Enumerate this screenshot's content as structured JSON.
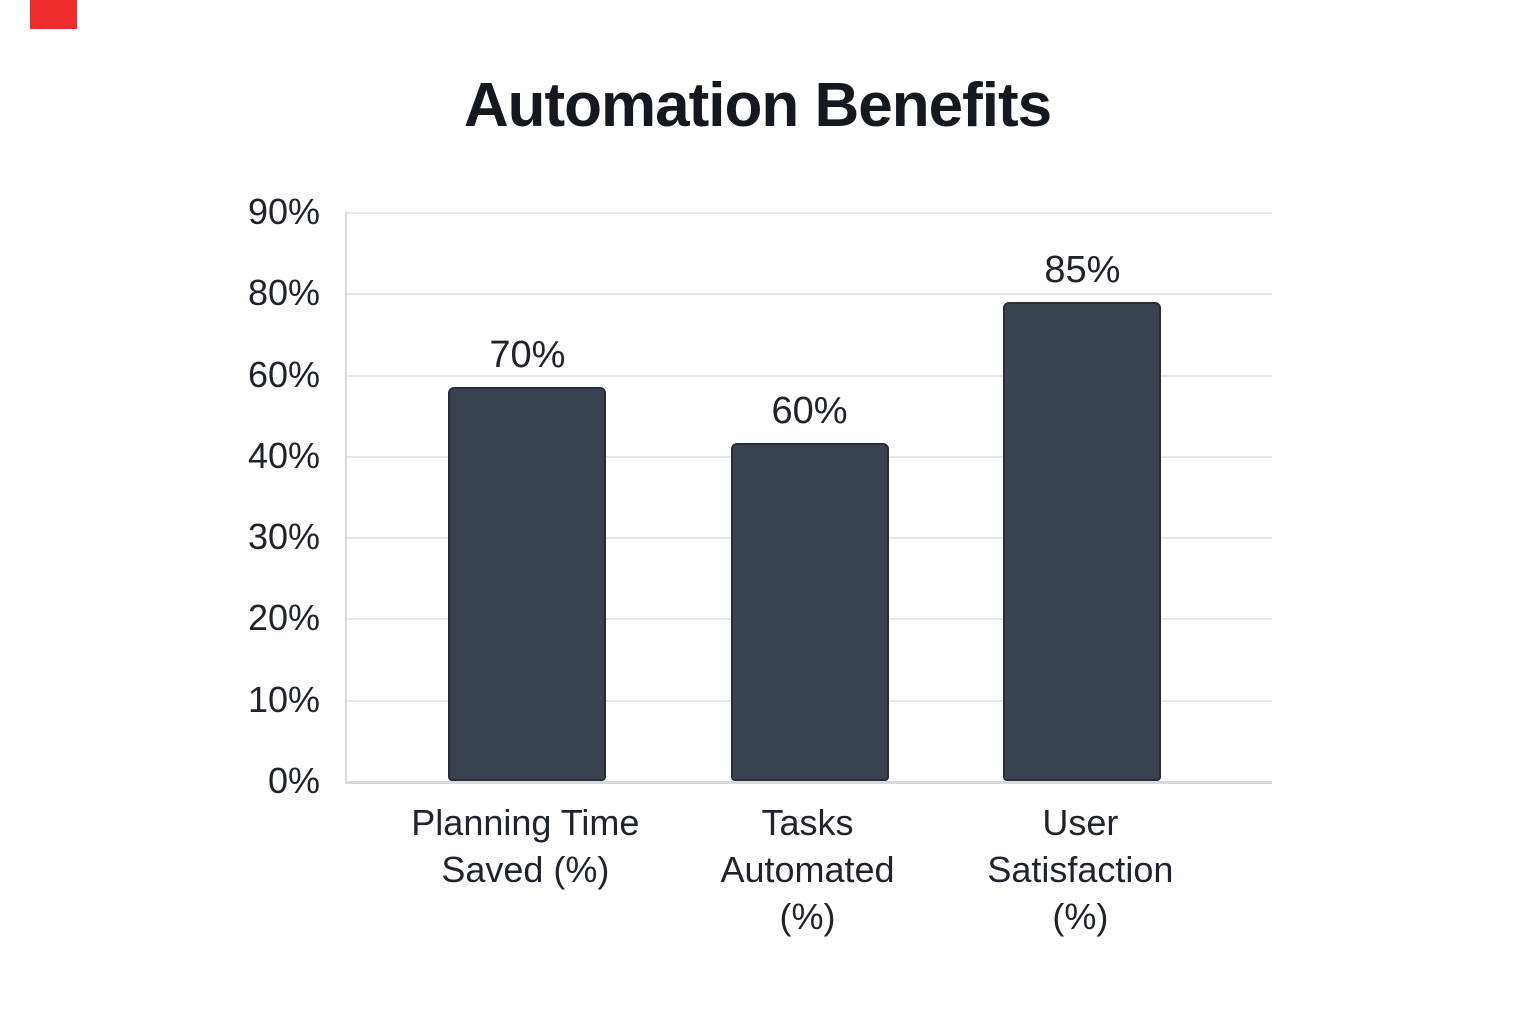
{
  "page": {
    "background": "#ffffff"
  },
  "marker": {
    "color": "#ee2c2c"
  },
  "chart_data": {
    "type": "bar",
    "title": "Automation Benefits",
    "categories": [
      "Planning Time Saved (%)",
      "Tasks Automated (%)",
      "User Satisfaction (%)"
    ],
    "category_label_lines": [
      [
        "Planning Time",
        "Saved (%)"
      ],
      [
        "Tasks",
        "Automated",
        "(%)"
      ],
      [
        "User",
        "Satisfaction",
        "(%)"
      ]
    ],
    "values": [
      70,
      60,
      85
    ],
    "value_labels": [
      "70%",
      "60%",
      "85%"
    ],
    "y_tick_labels": [
      "90%",
      "80%",
      "60%",
      "40%",
      "30%",
      "20%",
      "10%",
      "0%"
    ],
    "y_tick_values": [
      90,
      80,
      60,
      40,
      30,
      20,
      10,
      0
    ],
    "xlabel": "",
    "ylabel": "",
    "grid": true,
    "legend": false,
    "bar_color": "#3a4250",
    "bar_border_color": "#272d38",
    "grid_color": "#e5e7ea",
    "axis_color": "#d7d9dd",
    "title_color": "#14181f",
    "text_color": "#1e232e"
  }
}
